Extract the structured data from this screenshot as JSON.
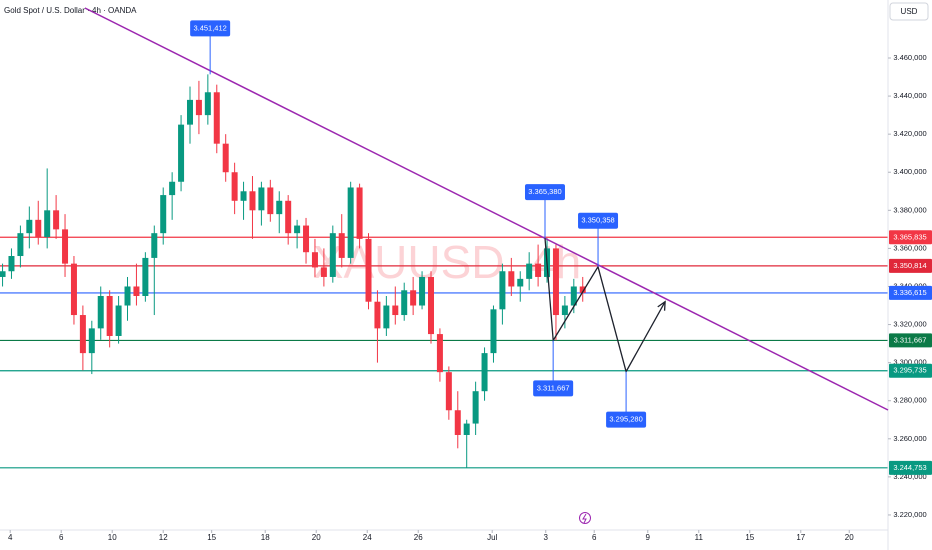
{
  "chart_data": {
    "type": "candlestick",
    "title": "Gold Spot / U.S. Dollar · 4h · OANDA",
    "watermark": "XAUUSD, 4h",
    "currency": "USD",
    "up_color": "#089981",
    "down_color": "#f23645",
    "xlim": [
      0,
      34.82
    ],
    "ylim": [
      3212100,
      3490460
    ],
    "xticks": [
      {
        "value": 0.4,
        "label": "4"
      },
      {
        "value": 2.4,
        "label": "6"
      },
      {
        "value": 4.4,
        "label": "10"
      },
      {
        "value": 6.4,
        "label": "12"
      },
      {
        "value": 8.3,
        "label": "15"
      },
      {
        "value": 10.4,
        "label": "18"
      },
      {
        "value": 12.4,
        "label": "20"
      },
      {
        "value": 14.4,
        "label": "24"
      },
      {
        "value": 16.4,
        "label": "26"
      },
      {
        "value": 19.3,
        "label": "Jul"
      },
      {
        "value": 21.4,
        "label": "3"
      },
      {
        "value": 23.3,
        "label": "6"
      },
      {
        "value": 25.4,
        "label": "9"
      },
      {
        "value": 27.4,
        "label": "11"
      },
      {
        "value": 29.4,
        "label": "15"
      },
      {
        "value": 31.4,
        "label": "17"
      },
      {
        "value": 33.3,
        "label": "20"
      }
    ],
    "yticks": [
      {
        "value": 3220000,
        "label": "3.220,000"
      },
      {
        "value": 3240000,
        "label": "3.240,000"
      },
      {
        "value": 3260000,
        "label": "3.260,000"
      },
      {
        "value": 3280000,
        "label": "3.280,000"
      },
      {
        "value": 3300000,
        "label": "3.300,000"
      },
      {
        "value": 3320000,
        "label": "3.320,000"
      },
      {
        "value": 3340000,
        "label": "3.340,000"
      },
      {
        "value": 3360000,
        "label": "3.360,000"
      },
      {
        "value": 3380000,
        "label": "3.380,000"
      },
      {
        "value": 3400000,
        "label": "3.400,000"
      },
      {
        "value": 3420000,
        "label": "3.420,000"
      },
      {
        "value": 3440000,
        "label": "3.440,000"
      },
      {
        "value": 3460000,
        "label": "3.460,000"
      }
    ],
    "x": [
      0.1,
      0.45,
      0.8,
      1.15,
      1.5,
      1.85,
      2.2,
      2.55,
      2.9,
      3.25,
      3.6,
      3.95,
      4.3,
      4.65,
      5.0,
      5.35,
      5.7,
      6.05,
      6.4,
      6.75,
      7.1,
      7.45,
      7.8,
      8.15,
      8.5,
      8.85,
      9.2,
      9.55,
      9.9,
      10.25,
      10.6,
      10.95,
      11.3,
      11.65,
      12.0,
      12.35,
      12.7,
      13.05,
      13.4,
      13.75,
      14.1,
      14.45,
      14.8,
      15.15,
      15.5,
      15.85,
      16.2,
      16.55,
      16.9,
      17.25,
      17.6,
      17.95,
      18.3,
      18.65,
      19.0,
      19.35,
      19.7,
      20.05,
      20.4,
      20.75,
      21.1,
      21.45,
      21.8,
      22.15,
      22.5,
      22.85
    ],
    "open": [
      3345000,
      3348000,
      3356000,
      3368000,
      3375000,
      3366000,
      3380000,
      3370000,
      3352000,
      3325000,
      3305000,
      3318000,
      3335000,
      3314000,
      3330000,
      3340000,
      3335000,
      3355000,
      3368000,
      3388000,
      3395000,
      3425000,
      3438000,
      3430000,
      3442000,
      3415000,
      3400000,
      3385000,
      3390000,
      3380000,
      3392000,
      3378000,
      3385000,
      3368000,
      3372000,
      3358000,
      3350000,
      3345000,
      3368000,
      3355000,
      3392000,
      3365000,
      3332000,
      3318000,
      3330000,
      3325000,
      3338000,
      3330000,
      3345000,
      3315000,
      3295000,
      3275000,
      3262000,
      3268000,
      3285000,
      3305000,
      3328000,
      3348000,
      3340000,
      3344000,
      3352000,
      3345000,
      3360000,
      3325000,
      3330000,
      3340000
    ],
    "high": [
      3352000,
      3360000,
      3372000,
      3382000,
      3385000,
      3402000,
      3388000,
      3378000,
      3356000,
      3330000,
      3322000,
      3340000,
      3338000,
      3335000,
      3345000,
      3352000,
      3358000,
      3372000,
      3392000,
      3400000,
      3430000,
      3445000,
      3448000,
      3451412,
      3446000,
      3420000,
      3405000,
      3395000,
      3398000,
      3395000,
      3396000,
      3390000,
      3388000,
      3375000,
      3376000,
      3365000,
      3360000,
      3372000,
      3378000,
      3395000,
      3394000,
      3368000,
      3338000,
      3335000,
      3340000,
      3342000,
      3345000,
      3348000,
      3348000,
      3318000,
      3298000,
      3285000,
      3270000,
      3290000,
      3308000,
      3330000,
      3352000,
      3355000,
      3348000,
      3358000,
      3362000,
      3365380,
      3362000,
      3335000,
      3344000,
      3345000
    ],
    "low": [
      3340000,
      3344000,
      3350000,
      3360000,
      3362000,
      3360000,
      3365000,
      3345000,
      3320000,
      3296000,
      3294000,
      3312000,
      3308000,
      3310000,
      3322000,
      3330000,
      3332000,
      3325000,
      3362000,
      3375000,
      3390000,
      3415000,
      3420000,
      3425000,
      3410000,
      3395000,
      3378000,
      3375000,
      3365000,
      3372000,
      3374000,
      3368000,
      3362000,
      3360000,
      3352000,
      3345000,
      3340000,
      3342000,
      3350000,
      3352000,
      3360000,
      3328000,
      3300000,
      3314000,
      3320000,
      3322000,
      3325000,
      3328000,
      3310000,
      3290000,
      3270000,
      3255000,
      3244753,
      3262000,
      3280000,
      3300000,
      3320000,
      3335000,
      3332000,
      3338000,
      3340000,
      3342000,
      3311667,
      3318000,
      3326000,
      3332000
    ],
    "close": [
      3348000,
      3356000,
      3368000,
      3375000,
      3366000,
      3380000,
      3370000,
      3352000,
      3325000,
      3305000,
      3318000,
      3335000,
      3314000,
      3330000,
      3340000,
      3335000,
      3355000,
      3368000,
      3388000,
      3395000,
      3425000,
      3438000,
      3430000,
      3442000,
      3415000,
      3400000,
      3385000,
      3390000,
      3380000,
      3392000,
      3378000,
      3385000,
      3368000,
      3372000,
      3358000,
      3350000,
      3345000,
      3368000,
      3355000,
      3392000,
      3365000,
      3332000,
      3318000,
      3330000,
      3325000,
      3338000,
      3330000,
      3345000,
      3315000,
      3295000,
      3275000,
      3262000,
      3268000,
      3285000,
      3305000,
      3328000,
      3348000,
      3340000,
      3344000,
      3352000,
      3345000,
      3360000,
      3325000,
      3330000,
      3340000,
      3336615
    ],
    "horizontal_lines": [
      {
        "value": 3365835,
        "label": "3.365,835",
        "color": "#f23645"
      },
      {
        "value": 3350814,
        "label": "3.350,814",
        "color": "#e0283a"
      },
      {
        "value": 3336615,
        "label": "3.336,615",
        "color": "#2962ff"
      },
      {
        "value": 3311667,
        "label": "3.311,667",
        "color": "#0b7a47"
      },
      {
        "value": 3295735,
        "label": "3.295,735",
        "color": "#089981"
      },
      {
        "value": 3244753,
        "label": "3.244,753",
        "color": "#089981"
      }
    ],
    "trend_line": {
      "color": "#9c27b0",
      "x": [
        3.33,
        34.82
      ],
      "values": [
        3486260,
        3275130
      ]
    },
    "projection": {
      "color": "#1e222d",
      "x": [
        21.37,
        21.69,
        23.45,
        24.55,
        26.08
      ],
      "values": [
        3365380,
        3311667,
        3350358,
        3295280,
        3332000
      ]
    },
    "callouts": [
      {
        "value": 3451412,
        "label": "3.451,412",
        "x": 8.24
      },
      {
        "value": 3365380,
        "label": "3.365,380",
        "x": 21.37
      },
      {
        "value": 3350358,
        "label": "3.350,358",
        "x": 23.45
      },
      {
        "value": 3311667,
        "label": "3.311,667",
        "x": 21.69
      },
      {
        "value": 3295280,
        "label": "3.295,280",
        "x": 24.55
      }
    ]
  }
}
